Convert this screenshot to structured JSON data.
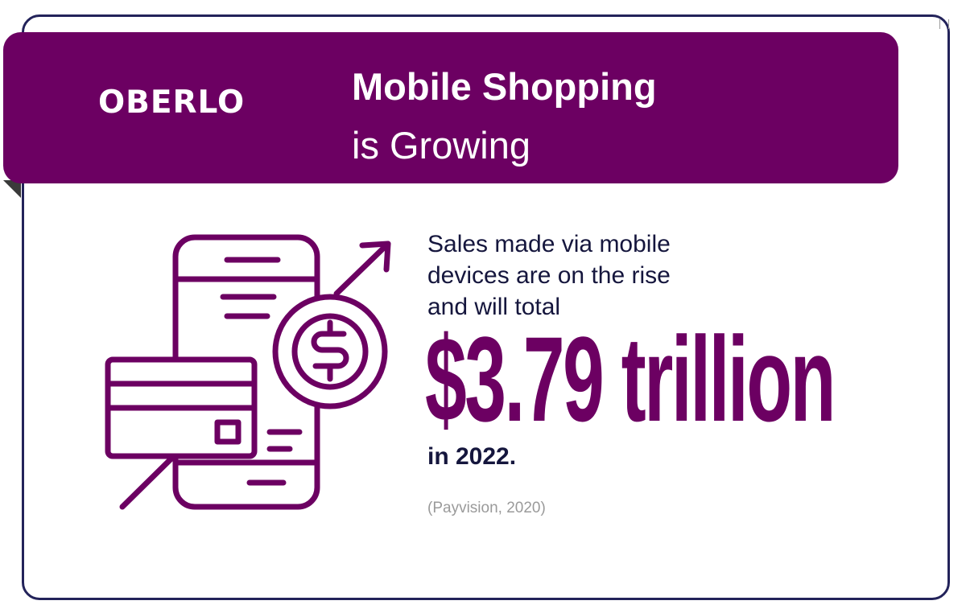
{
  "header": {
    "logo_text": "OBERLO",
    "title_line1": "Mobile Shopping",
    "title_line2": "is Growing"
  },
  "content": {
    "description_lines": [
      "Sales made via mobile",
      "devices are on the rise",
      "and will total"
    ],
    "amount": "$3.79 trillion",
    "year_text": "in 2022.",
    "source": "(Payvision, 2020)"
  },
  "illustration": {
    "icons": [
      "smartphone-icon",
      "credit-card-icon",
      "dollar-coin-icon",
      "trend-arrow-icon"
    ]
  },
  "colors": {
    "brand_purple": "#6c0062",
    "text_navy": "#15163d",
    "border_navy": "#23235a",
    "source_gray": "#9a9a9a",
    "background": "#ffffff"
  }
}
